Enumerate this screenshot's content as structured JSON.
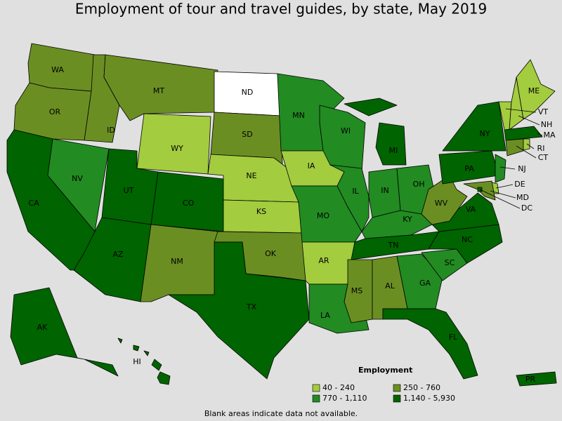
{
  "title": "Employment of tour and travel guides, by state, May 2019",
  "legend": {
    "title": "Employment",
    "items": [
      {
        "label": "40 - 240",
        "color": "#a3cc3f"
      },
      {
        "label": "250 - 760",
        "color": "#6b8e23"
      },
      {
        "label": "770 - 1,110",
        "color": "#228b22"
      },
      {
        "label": "1,140 - 5,930",
        "color": "#006400"
      }
    ]
  },
  "blank_color": "#ffffff",
  "states": [
    {
      "label": "WA",
      "class": 1
    },
    {
      "label": "OR",
      "class": 1
    },
    {
      "label": "CA",
      "class": 3
    },
    {
      "label": "NV",
      "class": 2
    },
    {
      "label": "ID",
      "class": 1
    },
    {
      "label": "MT",
      "class": 1
    },
    {
      "label": "WY",
      "class": 0
    },
    {
      "label": "UT",
      "class": 3
    },
    {
      "label": "CO",
      "class": 3
    },
    {
      "label": "AZ",
      "class": 3
    },
    {
      "label": "NM",
      "class": 1
    },
    {
      "label": "ND",
      "class": null
    },
    {
      "label": "SD",
      "class": 1
    },
    {
      "label": "NE",
      "class": 0
    },
    {
      "label": "KS",
      "class": 0
    },
    {
      "label": "OK",
      "class": 1
    },
    {
      "label": "TX",
      "class": 3
    },
    {
      "label": "MN",
      "class": 2
    },
    {
      "label": "IA",
      "class": 0
    },
    {
      "label": "MO",
      "class": 2
    },
    {
      "label": "AR",
      "class": 0
    },
    {
      "label": "LA",
      "class": 2
    },
    {
      "label": "WI",
      "class": 2
    },
    {
      "label": "IL",
      "class": 2
    },
    {
      "label": "MI",
      "class": 3
    },
    {
      "label": "IN",
      "class": 2
    },
    {
      "label": "OH",
      "class": 2
    },
    {
      "label": "KY",
      "class": 2
    },
    {
      "label": "TN",
      "class": 3
    },
    {
      "label": "MS",
      "class": 1
    },
    {
      "label": "AL",
      "class": 1
    },
    {
      "label": "GA",
      "class": 2
    },
    {
      "label": "FL",
      "class": 3
    },
    {
      "label": "SC",
      "class": 2
    },
    {
      "label": "NC",
      "class": 3
    },
    {
      "label": "VA",
      "class": 3
    },
    {
      "label": "WV",
      "class": 1
    },
    {
      "label": "PA",
      "class": 3
    },
    {
      "label": "NY",
      "class": 3
    },
    {
      "label": "VT",
      "class": 0
    },
    {
      "label": "NH",
      "class": 0
    },
    {
      "label": "ME",
      "class": 0
    },
    {
      "label": "MA",
      "class": 3
    },
    {
      "label": "CT",
      "class": 1
    },
    {
      "label": "RI",
      "class": 0
    },
    {
      "label": "NJ",
      "class": 2
    },
    {
      "label": "DE",
      "class": 0
    },
    {
      "label": "MD",
      "class": 1
    },
    {
      "label": "DC",
      "class": 3
    },
    {
      "label": "AK",
      "class": 3
    },
    {
      "label": "HI",
      "class": 3
    },
    {
      "label": "PR",
      "class": 3
    }
  ],
  "note": "Blank areas indicate data not available."
}
